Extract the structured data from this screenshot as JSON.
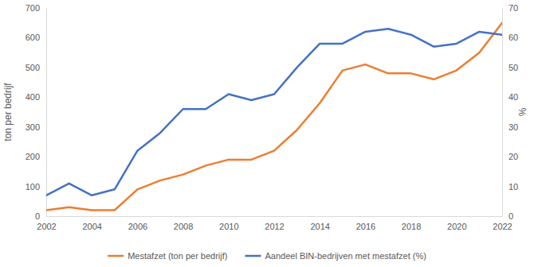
{
  "chart_data": {
    "type": "line",
    "y_label": "ton per bedrijf",
    "y2_label": "%",
    "x": [
      2002,
      2003,
      2004,
      2005,
      2006,
      2007,
      2008,
      2009,
      2010,
      2011,
      2012,
      2013,
      2014,
      2015,
      2016,
      2017,
      2018,
      2019,
      2020,
      2021,
      2022
    ],
    "xlim": [
      2002,
      2022
    ],
    "xticks": [
      2002,
      2004,
      2006,
      2008,
      2010,
      2012,
      2014,
      2016,
      2018,
      2020,
      2022
    ],
    "ylim": [
      0,
      700
    ],
    "yticks": [
      0,
      100,
      200,
      300,
      400,
      500,
      600,
      700
    ],
    "y2lim": [
      0,
      70
    ],
    "y2ticks": [
      0,
      10,
      20,
      30,
      40,
      50,
      60,
      70
    ],
    "grid": false,
    "legend": "bottom",
    "series": [
      {
        "name": "Mestafzet (ton per bedrijf)",
        "color": "#ed7d31",
        "values": [
          20,
          30,
          20,
          20,
          90,
          120,
          140,
          170,
          190,
          190,
          220,
          290,
          380,
          490,
          510,
          480,
          480,
          460,
          490,
          550,
          650
        ]
      },
      {
        "name": "Aandeel BIN-bedrijven met mestafzet (%)",
        "color": "#4472c4",
        "axis": "y2",
        "values": [
          7,
          11,
          7,
          9,
          22,
          28,
          36,
          36,
          41,
          39,
          41,
          50,
          58,
          58,
          62,
          63,
          61,
          57,
          58,
          62,
          61
        ]
      }
    ]
  }
}
